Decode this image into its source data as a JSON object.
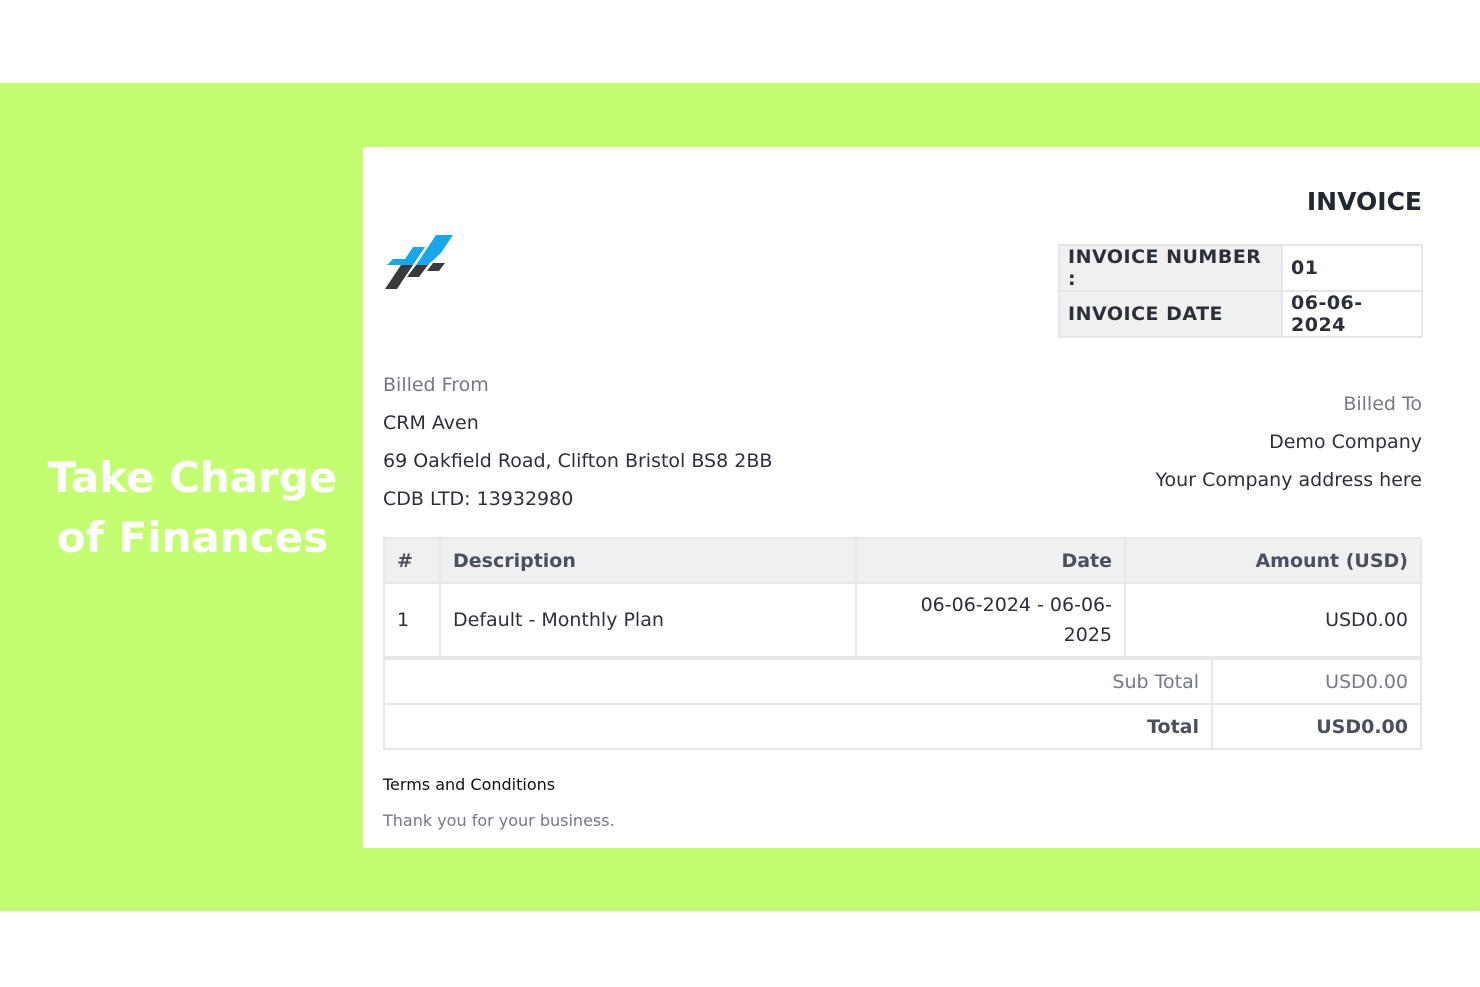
{
  "promo": {
    "headline_line1": "Take Charge",
    "headline_line2": "of Finances",
    "background_color": "#c4fd72"
  },
  "invoice": {
    "title": "INVOICE",
    "logo": {
      "icon": "brand-slashes-logo",
      "colors": [
        "#1aa7e8",
        "#3a3a3c"
      ]
    },
    "meta": {
      "number_label": "INVOICE NUMBER :",
      "number": "01",
      "date_label": "INVOICE DATE",
      "date": "06-06-2024"
    },
    "billed_from": {
      "label": "Billed From",
      "name": "CRM Aven",
      "address": "69 Oakfield Road, Clifton Bristol BS8 2BB",
      "company_no": "CDB LTD: 13932980"
    },
    "billed_to": {
      "label": "Billed To",
      "name": "Demo Company",
      "address": "Your Company address here"
    },
    "table": {
      "headers": [
        "#",
        "Description",
        "Date",
        "Amount (USD)"
      ],
      "rows": [
        {
          "num": "1",
          "description": "Default - Monthly Plan",
          "date_line1": "06-06-2024 - 06-06-",
          "date_line2": "2025",
          "amount": "USD0.00"
        }
      ],
      "subtotal_label": "Sub Total",
      "subtotal": "USD0.00",
      "total_label": "Total",
      "total": "USD0.00"
    },
    "terms": {
      "heading": "Terms and Conditions",
      "text": "Thank you for your business."
    }
  }
}
